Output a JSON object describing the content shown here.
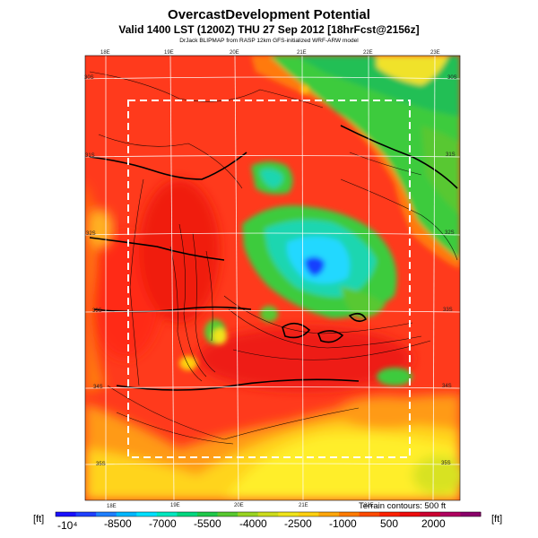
{
  "title": "OvercastDevelopment Potential",
  "subtitle": "Valid 1400 LST (1200Z) THU 27 Sep 2012 [18hrFcst@2156z]",
  "subsubtitle": "DrJack BLIPMAP from RASP 12km GFS-initialized WRF-ARW model",
  "terrain_note": "Terrain contours: 500 ft",
  "unit_left": "[ft]",
  "unit_right": "[ft]",
  "lon_labels_top": [
    "18E",
    "19E",
    "20E",
    "21E",
    "22E",
    "23E"
  ],
  "lon_labels_bottom": [
    "18E",
    "19E",
    "20E",
    "21E",
    "22E"
  ],
  "lat_labels_left": [
    "30S",
    "31S",
    "32S",
    "33S",
    "34S",
    "35S"
  ],
  "lat_labels_right": [
    "30S",
    "31S",
    "32S",
    "33S",
    "34S",
    "35S"
  ],
  "colorbar": {
    "labels": [
      "-10⁴",
      "-8500",
      "-7000",
      "-5500",
      "-4000",
      "-2500",
      "-1000",
      "500",
      "2000"
    ],
    "colors": [
      "#1a10ff",
      "#2040ff",
      "#1f7fff",
      "#00b7ff",
      "#00e0ff",
      "#00e8c0",
      "#00d77f",
      "#1fc84a",
      "#58c830",
      "#99d422",
      "#ccdc1c",
      "#f0e41a",
      "#ffd010",
      "#ffa60a",
      "#ff7a00",
      "#ff4a00",
      "#ff2200",
      "#ee0c0c",
      "#cc0030",
      "#b00060",
      "#8a006a"
    ]
  },
  "colors": {
    "background_red": "#ff3a1c",
    "orange": "#ff7a10",
    "yellow": "#ffe620",
    "green": "#3ecb3e",
    "teal": "#19d6b8",
    "cyan": "#20d8ff",
    "blue": "#1840ff"
  }
}
